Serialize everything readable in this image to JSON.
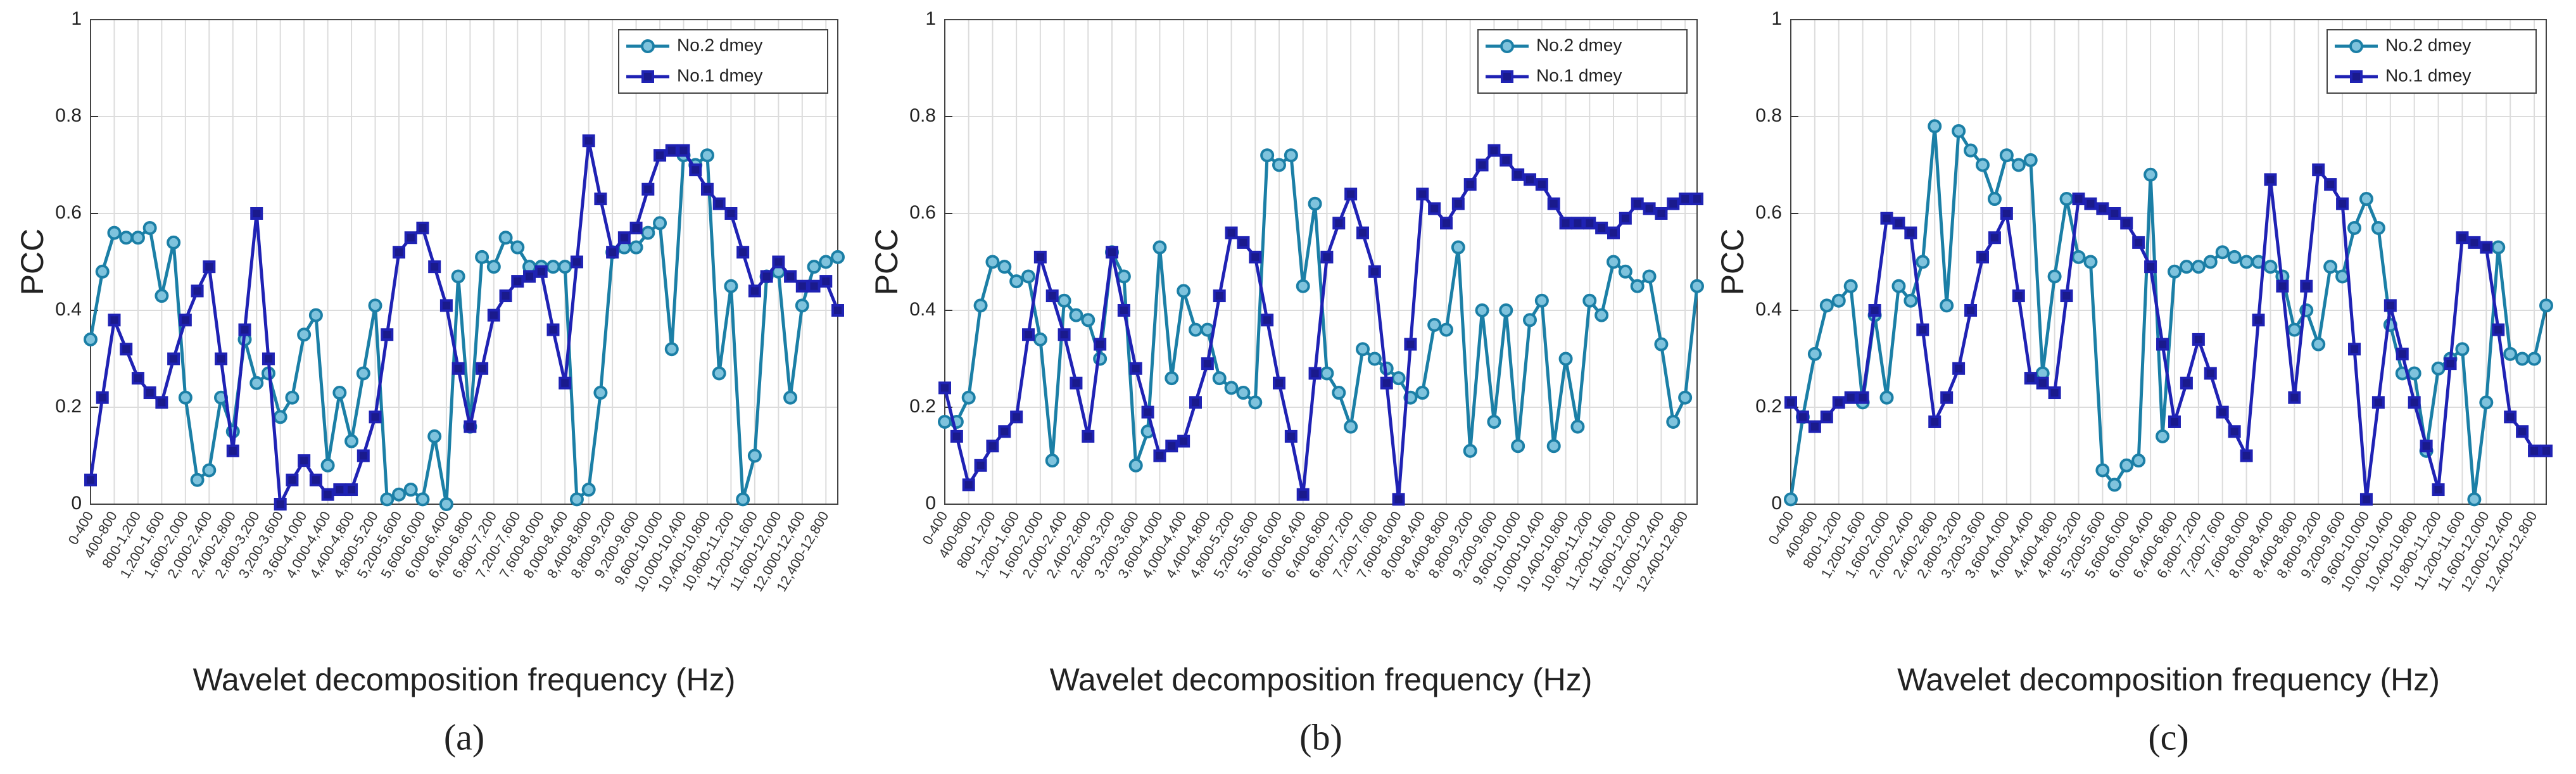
{
  "chart_data": [
    {
      "type": "line",
      "label": "(a)",
      "xlabel": "Wavelet decomposition frequency (Hz)",
      "ylabel": "PCC",
      "categories": [
        "0-400",
        null,
        "400-800",
        null,
        "800-1,200",
        null,
        "1,200-1,600",
        null,
        "1,600-2,000",
        null,
        "2,000-2,400",
        null,
        "2,400-2,800",
        null,
        "2,800-3,200",
        null,
        "3,200-3,600",
        null,
        "3,600-4,000",
        null,
        "4,000-4,400",
        null,
        "4,400-4,800",
        null,
        "4,800-5,200",
        null,
        "5,200-5,600",
        null,
        "5,600-6,000",
        null,
        "6,000-6,400",
        null,
        "6,400-6,800",
        null,
        "6,800-7,200",
        null,
        "7,200-7,600",
        null,
        "7,600-8,000",
        null,
        "8,000-8,400",
        null,
        "8,400-8,800",
        null,
        "8,800-9,200",
        null,
        "9,200-9,600",
        null,
        "9,600-10,000",
        null,
        "10,000-10,400",
        null,
        "10,400-10,800",
        null,
        "10,800-11,200",
        null,
        "11,200-11,600",
        null,
        "11,600-12,000",
        null,
        "12,000-12,400",
        null,
        "12,400-12,800",
        null
      ],
      "series": [
        {
          "name": "No.2 dmey",
          "color": "#1b7fa6",
          "marker": "circle",
          "values": [
            0.34,
            0.48,
            0.56,
            0.55,
            0.55,
            0.57,
            0.43,
            0.54,
            0.22,
            0.05,
            0.07,
            0.22,
            0.15,
            0.34,
            0.25,
            0.27,
            0.18,
            0.22,
            0.35,
            0.39,
            0.08,
            0.23,
            0.13,
            0.27,
            0.41,
            0.01,
            0.02,
            0.03,
            0.01,
            0.14,
            0.0,
            0.47,
            0.16,
            0.51,
            0.49,
            0.55,
            0.53,
            0.49,
            0.49,
            0.49,
            0.49,
            0.01,
            0.03,
            0.23,
            0.52,
            0.53,
            0.53,
            0.56,
            0.58,
            0.32,
            0.72,
            0.7,
            0.72,
            0.27,
            0.45,
            0.01,
            0.1,
            0.47,
            0.48,
            0.22,
            0.41,
            0.49,
            0.5,
            0.51
          ]
        },
        {
          "name": "No.1 dmey",
          "color": "#1f22b4",
          "marker": "square",
          "values": [
            0.05,
            0.22,
            0.38,
            0.32,
            0.26,
            0.23,
            0.21,
            0.3,
            0.38,
            0.44,
            0.49,
            0.3,
            0.11,
            0.36,
            0.6,
            0.3,
            0.0,
            0.05,
            0.09,
            0.05,
            0.02,
            0.03,
            0.03,
            0.1,
            0.18,
            0.35,
            0.52,
            0.55,
            0.57,
            0.49,
            0.41,
            0.28,
            0.16,
            0.28,
            0.39,
            0.43,
            0.46,
            0.47,
            0.48,
            0.36,
            0.25,
            0.5,
            0.75,
            0.63,
            0.52,
            0.55,
            0.57,
            0.65,
            0.72,
            0.73,
            0.73,
            0.69,
            0.65,
            0.62,
            0.6,
            0.52,
            0.44,
            0.47,
            0.5,
            0.47,
            0.45,
            0.45,
            0.46,
            0.4
          ]
        }
      ],
      "ylim": [
        0,
        1
      ],
      "yticks": [
        0,
        0.2,
        0.4,
        0.6,
        0.8,
        1
      ],
      "grid": true,
      "legend": "upper right"
    },
    {
      "type": "line",
      "label": "(b)",
      "xlabel": "Wavelet decomposition frequency (Hz)",
      "ylabel": "PCC",
      "categories": [
        "0-400",
        null,
        "400-800",
        null,
        "800-1,200",
        null,
        "1,200-1,600",
        null,
        "1,600-2,000",
        null,
        "2,000-2,400",
        null,
        "2,400-2,800",
        null,
        "2,800-3,200",
        null,
        "3,200-3,600",
        null,
        "3,600-4,000",
        null,
        "4,000-4,400",
        null,
        "4,400-4,800",
        null,
        "4,800-5,200",
        null,
        "5,200-5,600",
        null,
        "5,600-6,000",
        null,
        "6,000-6,400",
        null,
        "6,400-6,800",
        null,
        "6,800-7,200",
        null,
        "7,200-7,600",
        null,
        "7,600-8,000",
        null,
        "8,000-8,400",
        null,
        "8,400-8,800",
        null,
        "8,800-9,200",
        null,
        "9,200-9,600",
        null,
        "9,600-10,000",
        null,
        "10,000-10,400",
        null,
        "10,400-10,800",
        null,
        "10,800-11,200",
        null,
        "11,200-11,600",
        null,
        "11,600-12,000",
        null,
        "12,000-12,400",
        null,
        "12,400-12,800",
        null
      ],
      "series": [
        {
          "name": "No.2 dmey",
          "color": "#1b7fa6",
          "marker": "circle",
          "values": [
            0.17,
            0.17,
            0.22,
            0.41,
            0.5,
            0.49,
            0.46,
            0.47,
            0.34,
            0.09,
            0.42,
            0.39,
            0.38,
            0.3,
            0.52,
            0.47,
            0.08,
            0.15,
            0.53,
            0.26,
            0.44,
            0.36,
            0.36,
            0.26,
            0.24,
            0.23,
            0.21,
            0.72,
            0.7,
            0.72,
            0.45,
            0.62,
            0.27,
            0.23,
            0.16,
            0.32,
            0.3,
            0.28,
            0.26,
            0.22,
            0.23,
            0.37,
            0.36,
            0.53,
            0.11,
            0.4,
            0.17,
            0.4,
            0.12,
            0.38,
            0.42,
            0.12,
            0.3,
            0.16,
            0.42,
            0.39,
            0.5,
            0.48,
            0.45,
            0.47,
            0.33,
            0.17,
            0.22,
            0.45
          ]
        },
        {
          "name": "No.1 dmey",
          "color": "#1f22b4",
          "marker": "square",
          "values": [
            0.24,
            0.14,
            0.04,
            0.08,
            0.12,
            0.15,
            0.18,
            0.35,
            0.51,
            0.43,
            0.35,
            0.25,
            0.14,
            0.33,
            0.52,
            0.4,
            0.28,
            0.19,
            0.1,
            0.12,
            0.13,
            0.21,
            0.29,
            0.43,
            0.56,
            0.54,
            0.51,
            0.38,
            0.25,
            0.14,
            0.02,
            0.27,
            0.51,
            0.58,
            0.64,
            0.56,
            0.48,
            0.25,
            0.01,
            0.33,
            0.64,
            0.61,
            0.58,
            0.62,
            0.66,
            0.7,
            0.73,
            0.71,
            0.68,
            0.67,
            0.66,
            0.62,
            0.58,
            0.58,
            0.58,
            0.57,
            0.56,
            0.59,
            0.62,
            0.61,
            0.6,
            0.62,
            0.63,
            0.63
          ]
        }
      ],
      "ylim": [
        0,
        1
      ],
      "yticks": [
        0,
        0.2,
        0.4,
        0.6,
        0.8,
        1
      ],
      "grid": true,
      "legend": "upper right"
    },
    {
      "type": "line",
      "label": "(c)",
      "xlabel": "Wavelet decomposition frequency (Hz)",
      "ylabel": "PCC",
      "categories": [
        "0-400",
        null,
        "400-800",
        null,
        "800-1,200",
        null,
        "1,200-1,600",
        null,
        "1,600-2,000",
        null,
        "2,000-2,400",
        null,
        "2,400-2,800",
        null,
        "2,800-3,200",
        null,
        "3,200-3,600",
        null,
        "3,600-4,000",
        null,
        "4,000-4,400",
        null,
        "4,400-4,800",
        null,
        "4,800-5,200",
        null,
        "5,200-5,600",
        null,
        "5,600-6,000",
        null,
        "6,000-6,400",
        null,
        "6,400-6,800",
        null,
        "6,800-7,200",
        null,
        "7,200-7,600",
        null,
        "7,600-8,000",
        null,
        "8,000-8,400",
        null,
        "8,400-8,800",
        null,
        "8,800-9,200",
        null,
        "9,200-9,600",
        null,
        "9,600-10,000",
        null,
        "10,000-10,400",
        null,
        "10,400-10,800",
        null,
        "10,800-11,200",
        null,
        "11,200-11,600",
        null,
        "11,600-12,000",
        null,
        "12,000-12,400",
        null,
        "12,400-12,800",
        null
      ],
      "series": [
        {
          "name": "No.2 dmey",
          "color": "#1b7fa6",
          "marker": "circle",
          "values": [
            0.01,
            0.18,
            0.31,
            0.41,
            0.42,
            0.45,
            0.21,
            0.39,
            0.22,
            0.45,
            0.42,
            0.5,
            0.78,
            0.41,
            0.77,
            0.73,
            0.7,
            0.63,
            0.72,
            0.7,
            0.71,
            0.27,
            0.47,
            0.63,
            0.51,
            0.5,
            0.07,
            0.04,
            0.08,
            0.09,
            0.68,
            0.14,
            0.48,
            0.49,
            0.49,
            0.5,
            0.52,
            0.51,
            0.5,
            0.5,
            0.49,
            0.47,
            0.36,
            0.4,
            0.33,
            0.49,
            0.47,
            0.57,
            0.63,
            0.57,
            0.37,
            0.27,
            0.27,
            0.11,
            0.28,
            0.3,
            0.32,
            0.01,
            0.21,
            0.53,
            0.31,
            0.3,
            0.3,
            0.41
          ]
        },
        {
          "name": "No.1 dmey",
          "color": "#1f22b4",
          "marker": "square",
          "values": [
            0.21,
            0.18,
            0.16,
            0.18,
            0.21,
            0.22,
            0.22,
            0.4,
            0.59,
            0.58,
            0.56,
            0.36,
            0.17,
            0.22,
            0.28,
            0.4,
            0.51,
            0.55,
            0.6,
            0.43,
            0.26,
            0.25,
            0.23,
            0.43,
            0.63,
            0.62,
            0.61,
            0.6,
            0.58,
            0.54,
            0.49,
            0.33,
            0.17,
            0.25,
            0.34,
            0.27,
            0.19,
            0.15,
            0.1,
            0.38,
            0.67,
            0.45,
            0.22,
            0.45,
            0.69,
            0.66,
            0.62,
            0.32,
            0.01,
            0.21,
            0.41,
            0.31,
            0.21,
            0.12,
            0.03,
            0.29,
            0.55,
            0.54,
            0.53,
            0.36,
            0.18,
            0.15,
            0.11,
            0.11
          ]
        }
      ],
      "ylim": [
        0,
        1
      ],
      "yticks": [
        0,
        0.2,
        0.4,
        0.6,
        0.8,
        1
      ],
      "grid": true,
      "legend": "upper right"
    }
  ]
}
